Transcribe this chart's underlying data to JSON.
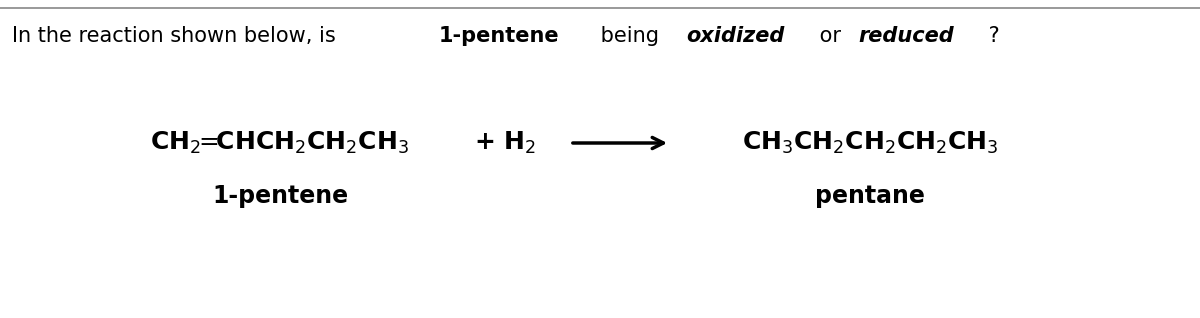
{
  "bg_color": "#f0f0f0",
  "main_bg": "#ffffff",
  "header_line_color": "#888888",
  "question_text_parts": [
    {
      "text": "In the reaction shown below, is ",
      "style": "normal"
    },
    {
      "text": "1-pentene",
      "style": "bold"
    },
    {
      "text": " being ",
      "style": "normal"
    },
    {
      "text": "oxidized",
      "style": "bold_italic"
    },
    {
      "text": " or ",
      "style": "normal"
    },
    {
      "text": "reduced",
      "style": "bold_italic"
    },
    {
      "text": " ?",
      "style": "normal"
    }
  ],
  "reactant_formula": "CH$_2$═CHCH$_2$CH$_2$CH$_3$",
  "reactant_label": "1-pentene",
  "plus_h2": "+ H$_2$",
  "arrow": "⟶",
  "product_formula": "CH$_3$CH$_2$CH$_2$CH$_2$CH$_3$",
  "product_label": "pentane",
  "font_size_question": 15,
  "font_size_formula": 18,
  "font_size_label": 17
}
